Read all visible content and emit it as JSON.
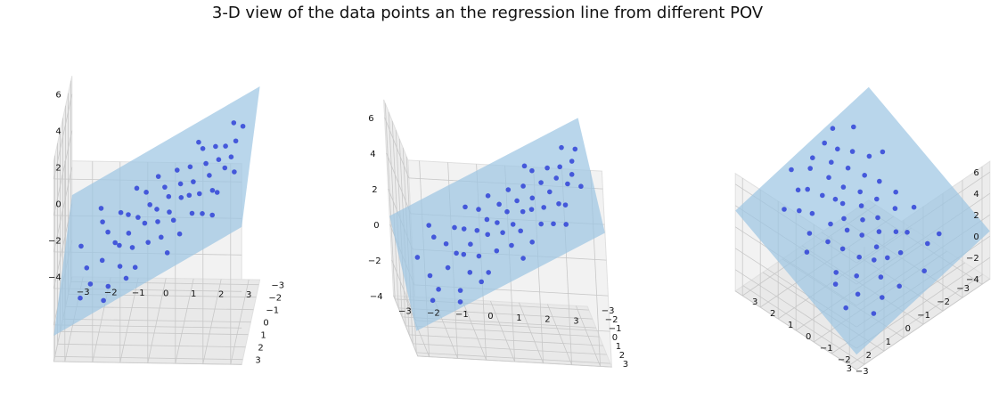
{
  "figure": {
    "title": "3-D view of the data points an the regression line from different POV",
    "colors": {
      "points": "#1f2fd6",
      "plane": "#9bc4e2",
      "pane": "#f2f2f2",
      "grid": "#c8c8c8"
    }
  },
  "chart_data": [
    {
      "type": "scatter",
      "view": "front, low elevation",
      "x_ticks": [
        "−3",
        "−2",
        "−1",
        "0",
        "1",
        "2",
        "3"
      ],
      "y_ticks": [
        "−3",
        "−2",
        "−1",
        "0",
        "1",
        "2",
        "3"
      ],
      "z_ticks": [
        "−4",
        "−2",
        "0",
        "2",
        "4",
        "6"
      ],
      "xlim": [
        -3.4,
        3.4
      ],
      "ylim": [
        -3.4,
        3.4
      ],
      "zlim": [
        -4,
        7
      ],
      "points": [
        {
          "x": -2.8,
          "y": -0.6,
          "z": -0.4
        },
        {
          "x": -2.5,
          "y": 0.4,
          "z": -0.9
        },
        {
          "x": -2.3,
          "y": 1.1,
          "z": -1.3
        },
        {
          "x": -2.1,
          "y": -1.4,
          "z": 0.4
        },
        {
          "x": -1.9,
          "y": 0.8,
          "z": -0.2
        },
        {
          "x": -1.8,
          "y": -0.3,
          "z": 0.6
        },
        {
          "x": -1.6,
          "y": 1.7,
          "z": -1.0
        },
        {
          "x": -1.5,
          "y": 0.1,
          "z": 0.3
        },
        {
          "x": -1.4,
          "y": -1.0,
          "z": 1.2
        },
        {
          "x": -1.3,
          "y": 0.6,
          "z": 0.5
        },
        {
          "x": -1.2,
          "y": 1.4,
          "z": -0.1
        },
        {
          "x": -1.1,
          "y": -0.7,
          "z": 1.3
        },
        {
          "x": -1.0,
          "y": 0.2,
          "z": 0.9
        },
        {
          "x": -0.9,
          "y": -1.8,
          "z": 2.0
        },
        {
          "x": -0.8,
          "y": 0.9,
          "z": 0.6
        },
        {
          "x": -0.7,
          "y": -0.2,
          "z": 1.5
        },
        {
          "x": -0.6,
          "y": 1.9,
          "z": 0.2
        },
        {
          "x": -0.5,
          "y": -1.2,
          "z": 2.2
        },
        {
          "x": -0.4,
          "y": 0.4,
          "z": 1.6
        },
        {
          "x": -0.3,
          "y": -0.5,
          "z": 2.0
        },
        {
          "x": -0.2,
          "y": 1.2,
          "z": 1.1
        },
        {
          "x": -0.1,
          "y": -1.6,
          "z": 2.8
        },
        {
          "x": 0.0,
          "y": 0.0,
          "z": 2.1
        },
        {
          "x": 0.1,
          "y": 0.7,
          "z": 1.9
        },
        {
          "x": 0.2,
          "y": -0.9,
          "z": 2.7
        },
        {
          "x": 0.3,
          "y": 1.5,
          "z": 1.6
        },
        {
          "x": 0.4,
          "y": -0.3,
          "z": 2.6
        },
        {
          "x": 0.5,
          "y": 0.5,
          "z": 2.3
        },
        {
          "x": 0.6,
          "y": -1.4,
          "z": 3.3
        },
        {
          "x": 0.7,
          "y": 1.0,
          "z": 2.2
        },
        {
          "x": 0.8,
          "y": -0.6,
          "z": 3.1
        },
        {
          "x": 0.9,
          "y": 0.2,
          "z": 2.9
        },
        {
          "x": 1.0,
          "y": 1.8,
          "z": 2.0
        },
        {
          "x": 1.1,
          "y": -1.1,
          "z": 3.7
        },
        {
          "x": 1.2,
          "y": 0.3,
          "z": 3.1
        },
        {
          "x": 1.3,
          "y": -0.2,
          "z": 3.5
        },
        {
          "x": 1.4,
          "y": 1.3,
          "z": 2.8
        },
        {
          "x": 1.5,
          "y": -1.7,
          "z": 4.3
        },
        {
          "x": 1.6,
          "y": 0.6,
          "z": 3.4
        },
        {
          "x": 1.7,
          "y": -0.8,
          "z": 4.1
        },
        {
          "x": 1.8,
          "y": 1.6,
          "z": 3.0
        },
        {
          "x": 1.9,
          "y": 0.0,
          "z": 4.0
        },
        {
          "x": 2.0,
          "y": -1.3,
          "z": 4.7
        },
        {
          "x": 2.1,
          "y": 0.9,
          "z": 3.8
        },
        {
          "x": 2.2,
          "y": -0.4,
          "z": 4.6
        },
        {
          "x": 2.3,
          "y": 1.2,
          "z": 3.9
        },
        {
          "x": 2.4,
          "y": -0.9,
          "z": 5.0
        },
        {
          "x": 2.5,
          "y": 0.4,
          "z": 4.7
        },
        {
          "x": 2.6,
          "y": -1.9,
          "z": 5.6
        },
        {
          "x": 2.7,
          "y": 0.1,
          "z": 5.1
        },
        {
          "x": 2.8,
          "y": -0.6,
          "z": 5.5
        },
        {
          "x": 2.9,
          "y": 1.0,
          "z": 4.9
        },
        {
          "x": 3.0,
          "y": -1.2,
          "z": 5.9
        },
        {
          "x": -2.6,
          "y": 1.8,
          "z": -1.6
        },
        {
          "x": -2.2,
          "y": -1.9,
          "z": 0.8
        },
        {
          "x": -0.9,
          "y": 2.2,
          "z": -0.2
        },
        {
          "x": 0.6,
          "y": 2.3,
          "z": 1.3
        },
        {
          "x": 1.3,
          "y": -2.2,
          "z": 4.3
        },
        {
          "x": -1.7,
          "y": 2.4,
          "z": -1.3
        },
        {
          "x": 2.2,
          "y": 2.0,
          "z": 3.2
        }
      ]
    },
    {
      "type": "scatter",
      "view": "elevated, slight rotation",
      "x_ticks": [
        "−3",
        "−2",
        "−1",
        "0",
        "1",
        "2",
        "3"
      ],
      "y_ticks": [
        "−3",
        "−2",
        "−1",
        "0",
        "1",
        "2",
        "3"
      ],
      "z_ticks": [
        "−4",
        "−2",
        "0",
        "2",
        "4",
        "6"
      ],
      "xlim": [
        -3.4,
        3.4
      ],
      "ylim": [
        -3.4,
        3.4
      ],
      "zlim": [
        -4,
        7
      ]
    },
    {
      "type": "scatter",
      "view": "high elevation, diagonal",
      "x_ticks": [
        "−3",
        "−2",
        "−1",
        "0",
        "1",
        "2",
        "3"
      ],
      "y_ticks": [
        "−3",
        "−2",
        "−1",
        "0",
        "1",
        "2",
        "3"
      ],
      "z_ticks": [
        "−4",
        "−2",
        "0",
        "2",
        "4",
        "6"
      ],
      "xlim": [
        -3.4,
        3.4
      ],
      "ylim": [
        -3.4,
        3.4
      ],
      "zlim": [
        -4,
        7
      ]
    }
  ]
}
